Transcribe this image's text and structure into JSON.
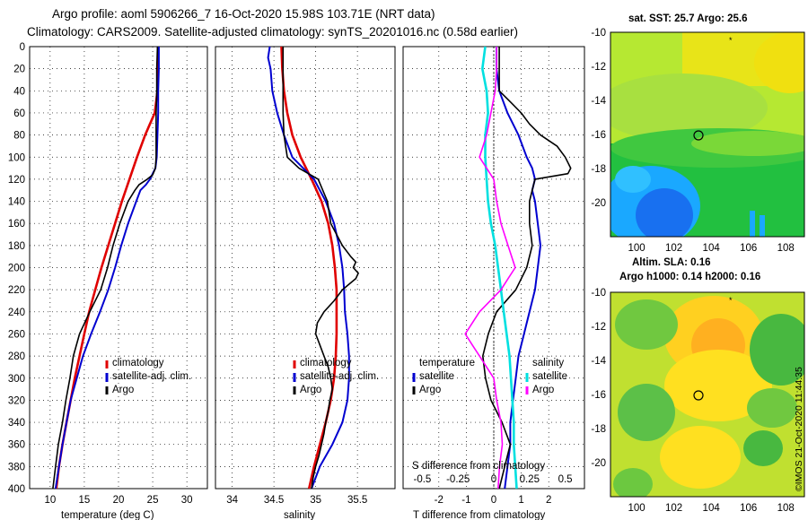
{
  "header": {
    "line1": "Argo profile: aoml 5906266_7 16-Oct-2020 15.98S 103.71E (NRT data)",
    "line2": "Climatology: CARS2009. Satellite-adjusted climatology: synTS_20201016.nc (0.58d earlier)"
  },
  "credit": "©IMOS 21-Oct-2020 11:44:35",
  "depth_axis": {
    "ticks": [
      0,
      20,
      40,
      60,
      80,
      100,
      120,
      140,
      160,
      180,
      200,
      220,
      240,
      260,
      280,
      300,
      320,
      340,
      360,
      380,
      400
    ]
  },
  "colors": {
    "climatology": "#e00000",
    "satellite": "#0000d0",
    "argo": "#000000",
    "salinity_diff": "#ff00ff",
    "sat_salinity_diff": "#00e0e0"
  },
  "chart_data": [
    {
      "type": "line",
      "name": "temperature-profile",
      "title": "",
      "xlabel": "temperature (deg C)",
      "ylabel": "depth",
      "xlim": [
        7,
        33
      ],
      "ylim": [
        400,
        0
      ],
      "xticks": [
        "10",
        "15",
        "20",
        "25",
        "30"
      ],
      "xtick_values": [
        10,
        15,
        20,
        25,
        30
      ],
      "legend_position": "lower-middle",
      "series": [
        {
          "name": "climatology",
          "key": "clim",
          "depth": [
            0,
            20,
            40,
            60,
            70,
            80,
            100,
            120,
            140,
            160,
            180,
            200,
            220,
            240,
            260,
            280,
            300,
            320,
            340,
            360,
            380,
            400
          ],
          "values": [
            25.8,
            25.8,
            25.7,
            25.3,
            24.6,
            23.9,
            22.7,
            21.6,
            20.5,
            19.5,
            18.5,
            17.5,
            16.6,
            15.7,
            15.0,
            14.3,
            13.6,
            13.0,
            12.4,
            11.8,
            11.3,
            10.9
          ]
        },
        {
          "name": "satellite-adj. clim.",
          "key": "sat",
          "depth": [
            0,
            20,
            40,
            60,
            80,
            100,
            110,
            120,
            125,
            130,
            140,
            160,
            180,
            200,
            220,
            240,
            260,
            280,
            300,
            320,
            340,
            360,
            380,
            400
          ],
          "values": [
            25.9,
            25.9,
            25.8,
            25.8,
            25.7,
            25.6,
            25.4,
            24.6,
            24.0,
            23.2,
            22.6,
            21.4,
            20.4,
            19.5,
            18.5,
            17.3,
            16.0,
            14.8,
            13.9,
            13.0,
            12.4,
            11.8,
            11.3,
            10.8
          ]
        },
        {
          "name": "Argo",
          "key": "argo",
          "depth": [
            0,
            20,
            40,
            60,
            80,
            100,
            110,
            116,
            120,
            125,
            130,
            140,
            160,
            180,
            200,
            220,
            240,
            260,
            280,
            300,
            320,
            340,
            360,
            380,
            400
          ],
          "values": [
            25.7,
            25.6,
            25.6,
            25.5,
            25.5,
            25.5,
            25.4,
            25.0,
            24.2,
            23.0,
            22.4,
            21.4,
            20.2,
            19.2,
            18.4,
            17.4,
            15.8,
            14.3,
            13.4,
            12.9,
            12.3,
            11.8,
            11.2,
            10.8,
            10.4
          ]
        }
      ],
      "legend": [
        "climatology",
        "satellite-adj. clim.",
        "Argo"
      ]
    },
    {
      "type": "line",
      "name": "salinity-profile",
      "title": "",
      "xlabel": "salinity",
      "ylabel": "",
      "xlim": [
        33.8,
        35.95
      ],
      "ylim": [
        400,
        0
      ],
      "xticks": [
        "34",
        "34.5",
        "35",
        "35.5"
      ],
      "xtick_values": [
        34,
        34.5,
        35,
        35.5
      ],
      "legend_position": "lower-right",
      "series": [
        {
          "name": "climatology",
          "key": "clim",
          "depth": [
            0,
            20,
            40,
            60,
            80,
            100,
            120,
            140,
            160,
            180,
            200,
            220,
            240,
            260,
            280,
            300,
            320,
            340,
            360,
            380,
            400
          ],
          "values": [
            34.59,
            34.6,
            34.62,
            34.66,
            34.72,
            34.82,
            34.95,
            35.07,
            35.15,
            35.2,
            35.23,
            35.25,
            35.25,
            35.25,
            35.24,
            35.22,
            35.18,
            35.12,
            35.05,
            34.98,
            34.92
          ]
        },
        {
          "name": "satellite-adj. clim.",
          "key": "sat",
          "depth": [
            0,
            10,
            20,
            40,
            60,
            80,
            100,
            110,
            120,
            140,
            160,
            180,
            200,
            220,
            240,
            260,
            280,
            300,
            320,
            340,
            360,
            380,
            400
          ],
          "values": [
            34.45,
            34.43,
            34.46,
            34.48,
            34.54,
            34.62,
            34.72,
            34.85,
            34.98,
            35.12,
            35.22,
            35.28,
            35.32,
            35.34,
            35.35,
            35.38,
            35.4,
            35.4,
            35.38,
            35.32,
            35.2,
            35.05,
            34.95
          ]
        },
        {
          "name": "Argo",
          "key": "argo",
          "depth": [
            0,
            20,
            40,
            60,
            80,
            100,
            110,
            120,
            140,
            160,
            180,
            190,
            195,
            200,
            205,
            210,
            215,
            220,
            230,
            240,
            250,
            260,
            270,
            280,
            290,
            300,
            310,
            320,
            330,
            340,
            350,
            360,
            370,
            380,
            390,
            400
          ],
          "values": [
            34.61,
            34.61,
            34.61,
            34.61,
            34.62,
            34.66,
            34.8,
            35.03,
            35.14,
            35.18,
            35.32,
            35.42,
            35.48,
            35.45,
            35.51,
            35.48,
            35.4,
            35.32,
            35.22,
            35.1,
            35.02,
            35.0,
            35.05,
            35.1,
            35.15,
            35.18,
            35.2,
            35.17,
            35.15,
            35.12,
            35.1,
            35.07,
            35.04,
            35.0,
            34.97,
            34.95
          ]
        }
      ],
      "legend": [
        "climatology",
        "satellite-adj. clim.",
        "Argo"
      ]
    },
    {
      "type": "line",
      "name": "difference-profile",
      "title": "",
      "xlabel": "T difference from climatology",
      "x2label": "S difference from climatology",
      "ylabel": "",
      "xlim": [
        -3.3,
        3.3
      ],
      "ylim": [
        400,
        0
      ],
      "xticks": [
        "-2",
        "-1",
        "0",
        "1",
        "2"
      ],
      "xtick_values": [
        -2,
        -1,
        0,
        1,
        2
      ],
      "x2ticks": [
        "-0.5",
        "-0.25",
        "0",
        "0.25",
        "0.5"
      ],
      "x2tick_values": [
        -0.5,
        -0.25,
        0,
        0.25,
        0.5
      ],
      "legend_position": "lower-middle",
      "legend_temperature": {
        "title": "temperature",
        "items": [
          "satellite",
          "Argo"
        ]
      },
      "legend_salinity": {
        "title": "salinity",
        "items": [
          "satellite",
          "Argo"
        ]
      },
      "series": [
        {
          "name": "temperature satellite",
          "key": "t_sat",
          "depth": [
            0,
            20,
            40,
            60,
            80,
            100,
            110,
            120,
            130,
            140,
            160,
            180,
            200,
            220,
            240,
            260,
            280,
            300,
            320,
            340,
            360,
            380,
            400
          ],
          "values": [
            0.1,
            0.1,
            0.2,
            0.5,
            0.9,
            1.2,
            1.4,
            1.5,
            1.4,
            1.5,
            1.6,
            1.7,
            1.6,
            1.5,
            1.3,
            1.1,
            0.9,
            0.8,
            0.7,
            0.6,
            0.6,
            0.5,
            0.4
          ]
        },
        {
          "name": "temperature Argo",
          "key": "t_argo",
          "depth": [
            0,
            20,
            40,
            50,
            60,
            70,
            80,
            90,
            100,
            110,
            115,
            120,
            130,
            140,
            160,
            180,
            200,
            220,
            240,
            260,
            280,
            300,
            320,
            340,
            360,
            380,
            400
          ],
          "values": [
            0.2,
            0.2,
            0.2,
            0.6,
            1.0,
            1.3,
            1.7,
            2.3,
            2.6,
            2.8,
            2.7,
            1.5,
            1.4,
            1.3,
            1.3,
            1.4,
            1.2,
            0.8,
            0.1,
            -0.2,
            -0.4,
            -0.3,
            -0.1,
            0.3,
            0.6,
            0.4,
            0.2
          ]
        },
        {
          "name": "salinity satellite",
          "key": "s_sat",
          "depth": [
            0,
            20,
            40,
            60,
            80,
            100,
            120,
            140,
            160,
            180,
            200,
            220,
            240,
            260,
            280,
            300,
            320,
            340,
            360,
            380,
            400
          ],
          "values": [
            -0.06,
            -0.08,
            -0.05,
            -0.04,
            -0.06,
            -0.06,
            -0.05,
            -0.04,
            -0.02,
            0.01,
            0.03,
            0.05,
            0.07,
            0.09,
            0.11,
            0.12,
            0.13,
            0.14,
            0.14,
            0.15,
            0.16
          ]
        },
        {
          "name": "salinity Argo",
          "key": "s_argo",
          "depth": [
            0,
            20,
            40,
            60,
            80,
            100,
            110,
            120,
            140,
            160,
            180,
            200,
            210,
            220,
            240,
            260,
            270,
            280,
            290,
            300,
            320,
            340,
            360,
            380,
            400
          ],
          "values": [
            0.02,
            0.02,
            0.01,
            -0.02,
            -0.05,
            -0.1,
            -0.05,
            0.0,
            0.02,
            0.05,
            0.1,
            0.15,
            0.1,
            0.05,
            -0.1,
            -0.2,
            -0.15,
            -0.1,
            -0.05,
            0.0,
            0.02,
            0.05,
            0.06,
            0.04,
            0.03
          ]
        }
      ],
      "annotation": "S difference from climatology"
    }
  ],
  "maps": {
    "sst": {
      "title": "sat. SST: 25.7 Argo: 25.6",
      "caption": "Altim. SLA: 0.16",
      "yticks": [
        "-10",
        "-12",
        "-14",
        "-16",
        "-18",
        "-20"
      ],
      "xticks": [
        "100",
        "102",
        "104",
        "106",
        "108"
      ],
      "marker_lon": 103.71,
      "marker_lat": -15.98
    },
    "sla": {
      "title": "Argo h1000: 0.14 h2000: 0.16",
      "yticks": [
        "-10",
        "-12",
        "-14",
        "-16",
        "-18",
        "-20"
      ],
      "xticks": [
        "100",
        "102",
        "104",
        "106",
        "108"
      ],
      "marker_lon": 103.71,
      "marker_lat": -15.98
    }
  }
}
